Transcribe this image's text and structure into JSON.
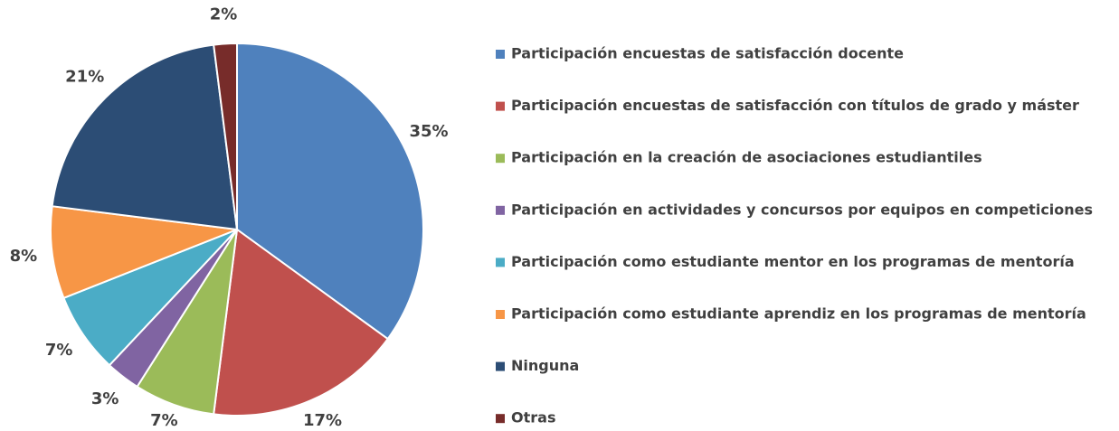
{
  "chart_data": {
    "type": "pie",
    "categories": [
      "Participación encuestas de satisfacción docente",
      "Participación encuestas de satisfacción con títulos de grado y máster",
      "Participación en la creación de asociaciones estudiantiles",
      "Participación en actividades y concursos por equipos en competiciones",
      "Participación como estudiante mentor en los programas de mentoría",
      "Participación como estudiante aprendiz en los programas de mentoría",
      "Ninguna",
      "Otras"
    ],
    "values": [
      35,
      17,
      7,
      3,
      7,
      8,
      21,
      2
    ],
    "value_labels": [
      "35%",
      "17%",
      "7%",
      "3%",
      "7%",
      "8%",
      "21%",
      "2%"
    ],
    "colors": [
      "#4f81bd",
      "#c0504d",
      "#9bbb59",
      "#8064a2",
      "#4bacc6",
      "#f79646",
      "#2c4d75",
      "#772c2a"
    ],
    "legend": "right"
  }
}
